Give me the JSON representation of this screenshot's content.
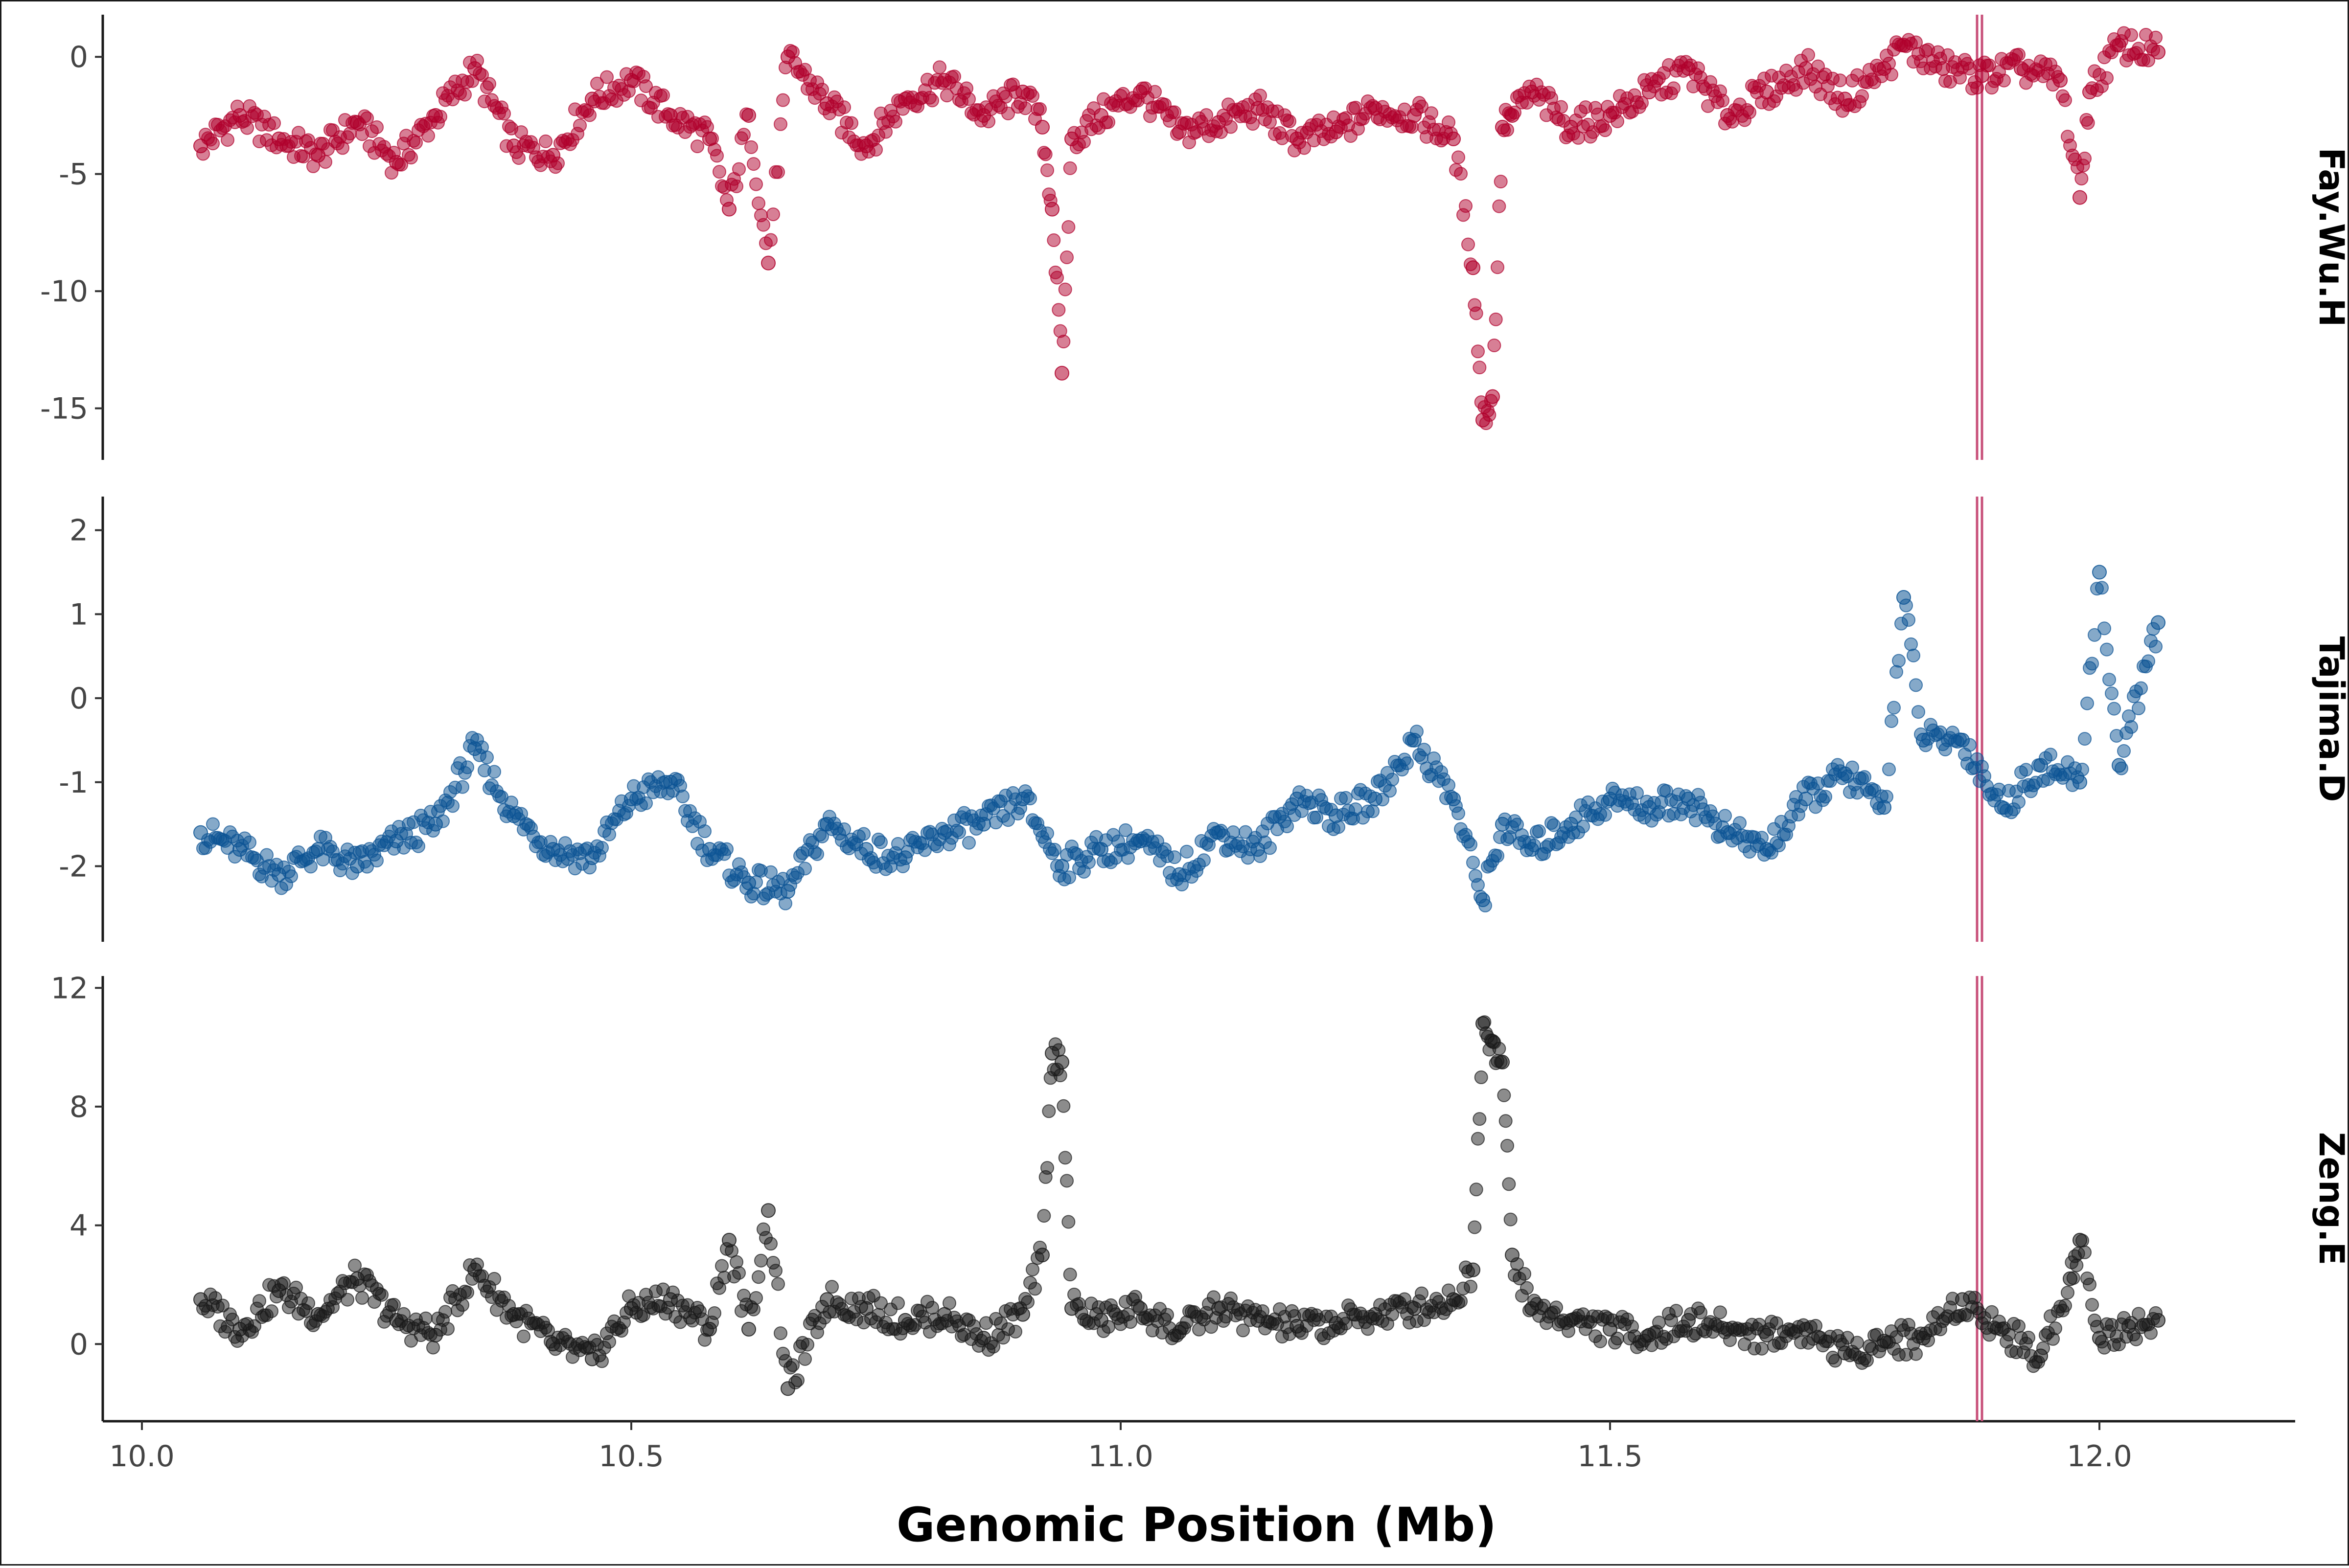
{
  "chart_data": {
    "type": "scatter",
    "title": "",
    "xlabel": "Genomic Position (Mb)",
    "xlim": [
      9.96,
      12.2
    ],
    "xticks": [
      {
        "value": 10.0,
        "label": "10.0"
      },
      {
        "value": 10.5,
        "label": "10.5"
      },
      {
        "value": 11.0,
        "label": "11.0"
      },
      {
        "value": 11.5,
        "label": "11.5"
      },
      {
        "value": 12.0,
        "label": "12.0"
      }
    ],
    "highlight_x": [
      11.875,
      11.88
    ],
    "highlight_color": "#c8507a",
    "grid": false,
    "legend": "none",
    "panels": [
      {
        "name": "Fay.Wu.H",
        "color": "#b0002c",
        "ylim": [
          -17.2,
          1.8
        ],
        "yticks": [
          {
            "value": 0,
            "label": "0"
          },
          {
            "value": -5,
            "label": "-5"
          },
          {
            "value": -10,
            "label": "-10"
          },
          {
            "value": -15,
            "label": "-15"
          }
        ],
        "x": [
          10.06,
          10.1,
          10.14,
          10.18,
          10.22,
          10.26,
          10.3,
          10.34,
          10.38,
          10.42,
          10.46,
          10.5,
          10.54,
          10.58,
          10.6,
          10.62,
          10.64,
          10.66,
          10.7,
          10.74,
          10.78,
          10.82,
          10.86,
          10.9,
          10.92,
          10.93,
          10.94,
          10.95,
          10.98,
          11.02,
          11.06,
          11.1,
          11.14,
          11.18,
          11.22,
          11.26,
          11.3,
          11.34,
          11.36,
          11.37,
          11.38,
          11.39,
          11.4,
          11.42,
          11.46,
          11.5,
          11.54,
          11.58,
          11.62,
          11.66,
          11.7,
          11.74,
          11.78,
          11.8,
          11.84,
          11.88,
          11.92,
          11.96,
          11.98,
          11.99,
          12.02,
          12.06
        ],
        "y": [
          -3.8,
          -2.5,
          -3.5,
          -4.2,
          -2.8,
          -4.5,
          -2.5,
          -0.5,
          -3.8,
          -4.2,
          -1.8,
          -1,
          -2.5,
          -3.5,
          -6.5,
          -2.5,
          -8.8,
          0,
          -2,
          -3.8,
          -1.8,
          -1,
          -2.5,
          -1.5,
          -3,
          -6.5,
          -13.5,
          -3.5,
          -2.5,
          -1.5,
          -3.2,
          -2.8,
          -2.2,
          -3.5,
          -3.2,
          -2.2,
          -2.5,
          -3.5,
          -9,
          -15.5,
          -14.5,
          -3,
          -2.5,
          -1.5,
          -3,
          -2.5,
          -1.5,
          -0.5,
          -2.5,
          -1.5,
          -0.5,
          -1.8,
          -0.5,
          0.5,
          -0.5,
          -0.8,
          -0.5,
          -1,
          -6,
          -1.5,
          0.5,
          0.2
        ]
      },
      {
        "name": "Tajima.D",
        "color": "#0b5394",
        "ylim": [
          -2.9,
          2.4
        ],
        "yticks": [
          {
            "value": 2,
            "label": "2"
          },
          {
            "value": 1,
            "label": "1"
          },
          {
            "value": 0,
            "label": "0"
          },
          {
            "value": -1,
            "label": "-1"
          },
          {
            "value": -2,
            "label": "-2"
          }
        ],
        "x": [
          10.06,
          10.1,
          10.14,
          10.18,
          10.22,
          10.26,
          10.3,
          10.34,
          10.38,
          10.42,
          10.46,
          10.5,
          10.54,
          10.58,
          10.62,
          10.66,
          10.7,
          10.74,
          10.78,
          10.82,
          10.86,
          10.9,
          10.94,
          10.98,
          11.02,
          11.06,
          11.1,
          11.14,
          11.18,
          11.22,
          11.26,
          11.3,
          11.34,
          11.37,
          11.39,
          11.42,
          11.46,
          11.5,
          11.54,
          11.58,
          11.62,
          11.66,
          11.7,
          11.74,
          11.78,
          11.8,
          11.82,
          11.86,
          11.9,
          11.94,
          11.98,
          12.0,
          12.02,
          12.06
        ],
        "y": [
          -1.6,
          -1.8,
          -2.1,
          -1.8,
          -2,
          -1.7,
          -1.5,
          -0.6,
          -1.4,
          -1.8,
          -1.9,
          -1.2,
          -1,
          -1.8,
          -2.2,
          -2.3,
          -1.5,
          -1.8,
          -1.9,
          -1.6,
          -1.5,
          -1.2,
          -2,
          -1.8,
          -1.7,
          -2.1,
          -1.6,
          -1.8,
          -1.2,
          -1.4,
          -1.2,
          -0.5,
          -1.2,
          -2.4,
          -1.5,
          -1.8,
          -1.5,
          -1.2,
          -1.3,
          -1.2,
          -1.6,
          -1.8,
          -1.2,
          -0.9,
          -1.3,
          1.2,
          -0.5,
          -0.5,
          -1.3,
          -0.8,
          -1,
          1.5,
          -0.8,
          0.9
        ]
      },
      {
        "name": "Zeng.E",
        "color": "#1a1a1a",
        "ylim": [
          -2.6,
          12.4
        ],
        "yticks": [
          {
            "value": 12,
            "label": "12"
          },
          {
            "value": 8,
            "label": "8"
          },
          {
            "value": 4,
            "label": "4"
          },
          {
            "value": 0,
            "label": "0"
          }
        ],
        "x": [
          10.06,
          10.1,
          10.14,
          10.18,
          10.22,
          10.26,
          10.3,
          10.34,
          10.38,
          10.42,
          10.46,
          10.5,
          10.54,
          10.58,
          10.6,
          10.62,
          10.64,
          10.66,
          10.7,
          10.74,
          10.78,
          10.82,
          10.86,
          10.9,
          10.92,
          10.93,
          10.94,
          10.95,
          10.98,
          11.02,
          11.06,
          11.1,
          11.14,
          11.18,
          11.22,
          11.26,
          11.3,
          11.34,
          11.36,
          11.37,
          11.38,
          11.39,
          11.4,
          11.42,
          11.46,
          11.5,
          11.54,
          11.58,
          11.62,
          11.66,
          11.7,
          11.74,
          11.78,
          11.82,
          11.86,
          11.9,
          11.94,
          11.97,
          11.98,
          12.0,
          12.03,
          12.06
        ],
        "y": [
          1.5,
          0.5,
          1.8,
          1,
          2.2,
          0.8,
          0.3,
          2.5,
          1,
          0,
          -0.5,
          1.2,
          1.5,
          0.5,
          3.5,
          0.5,
          4.5,
          -1.5,
          1.5,
          1.2,
          0.8,
          1,
          0.2,
          1,
          3,
          9.8,
          9.5,
          1.2,
          0.8,
          1.2,
          0.4,
          1.2,
          0.8,
          0.6,
          0.7,
          1,
          1.2,
          1.5,
          2.5,
          10.8,
          10.2,
          9.5,
          3,
          1.2,
          0.8,
          0.5,
          0.3,
          0.8,
          0.5,
          0.3,
          0.5,
          -0.3,
          0.1,
          0.2,
          1.5,
          0.5,
          -0.4,
          2.2,
          3.5,
          0.2,
          0.6,
          0.8
        ]
      }
    ]
  }
}
